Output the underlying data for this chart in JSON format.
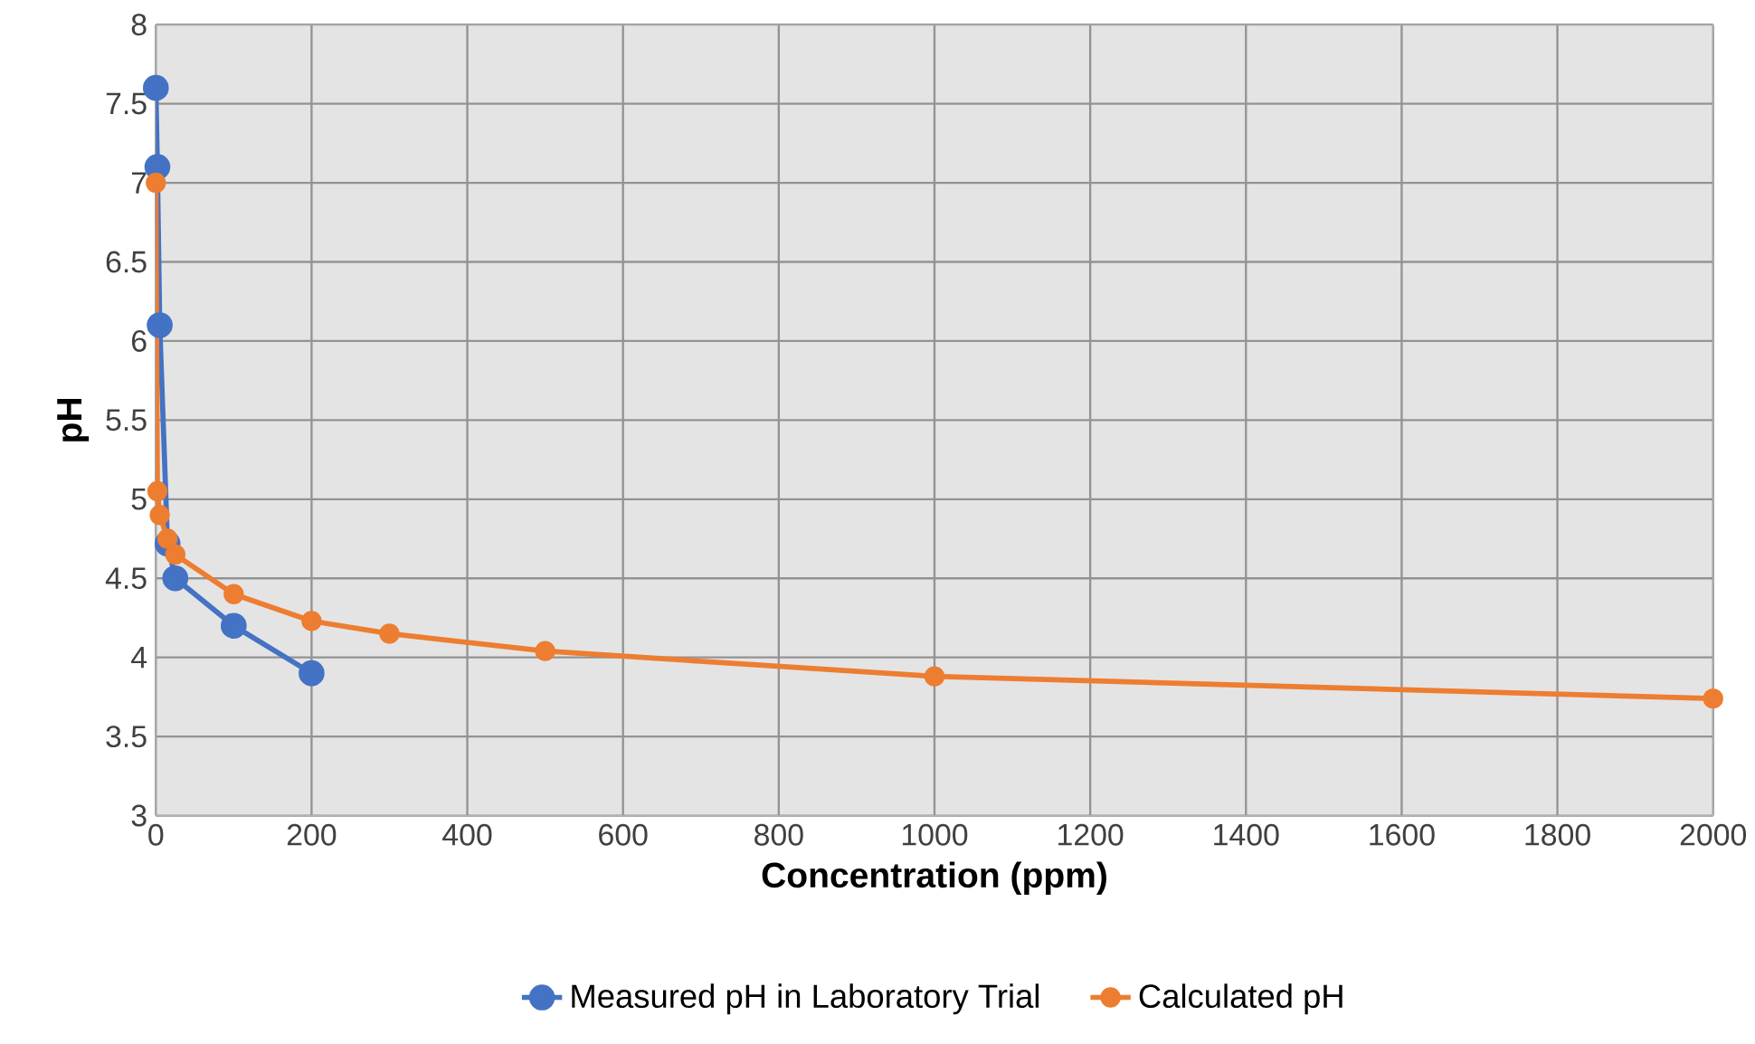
{
  "chart_data": {
    "type": "line",
    "xlabel": "Concentration (ppm)",
    "ylabel": "pH",
    "xlim": [
      0,
      2000
    ],
    "xticks": [
      0,
      200,
      400,
      600,
      800,
      1000,
      1200,
      1400,
      1600,
      1800,
      2000
    ],
    "ylim": [
      3,
      8
    ],
    "yticks": [
      3,
      3.5,
      4,
      4.5,
      5,
      5.5,
      6,
      6.5,
      7,
      7.5,
      8
    ],
    "grid": true,
    "legend": "bottom",
    "marker": "circle",
    "line_style": "solid",
    "series": [
      {
        "name": "Measured pH in Laboratory Trial",
        "color": "#4472c4",
        "x": [
          0,
          2,
          5,
          15,
          25,
          100,
          200
        ],
        "values": [
          7.6,
          7.1,
          6.1,
          4.72,
          4.5,
          4.2,
          3.9
        ]
      },
      {
        "name": "Calculated pH",
        "color": "#ed7d31",
        "x": [
          0,
          2,
          5,
          15,
          25,
          100,
          200,
          300,
          500,
          1000,
          2000
        ],
        "values": [
          7.0,
          5.05,
          4.9,
          4.75,
          4.65,
          4.4,
          4.23,
          4.15,
          4.04,
          3.88,
          3.74
        ]
      }
    ]
  }
}
